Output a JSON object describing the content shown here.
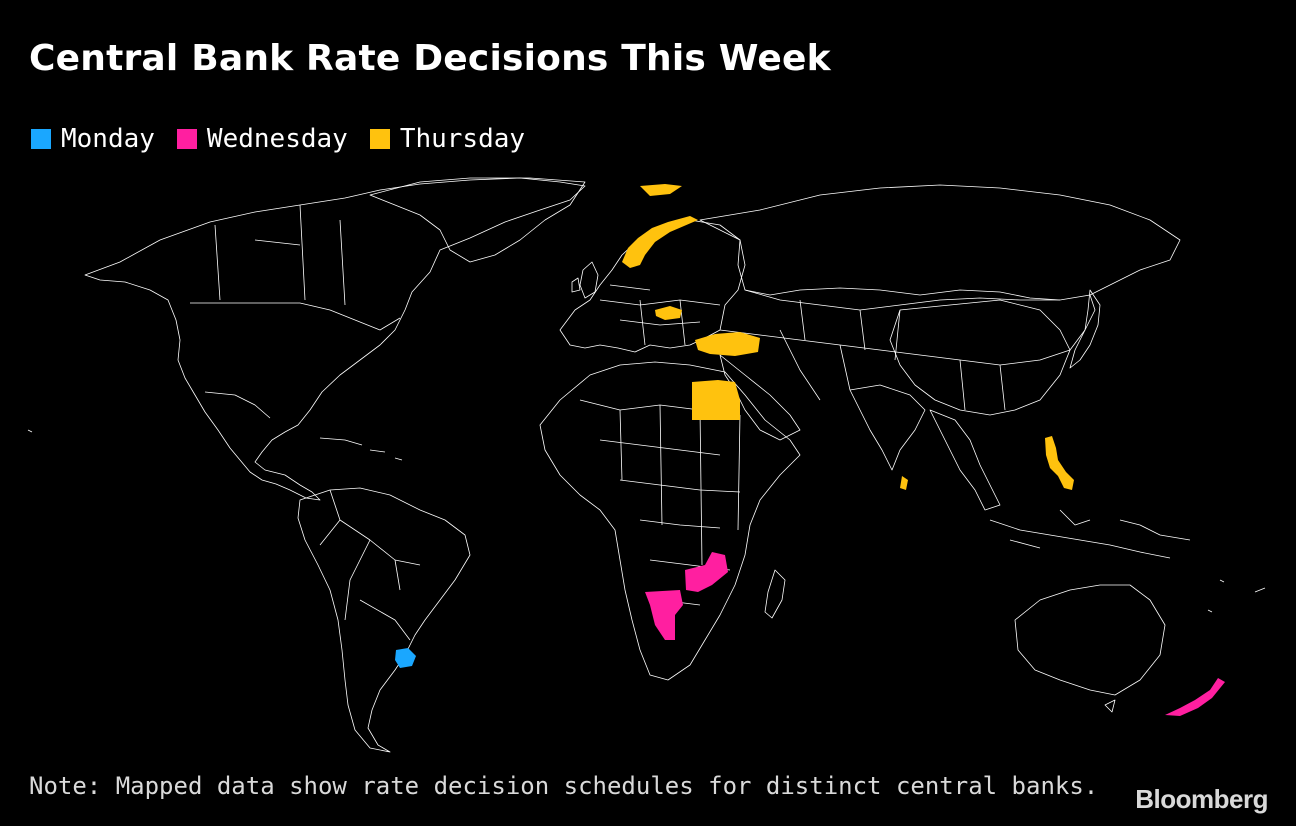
{
  "title": "Central Bank Rate Decisions This Week",
  "legend": [
    {
      "label": "Monday",
      "color": "#1aa7ff"
    },
    {
      "label": "Wednesday",
      "color": "#ff1fa0"
    },
    {
      "label": "Thursday",
      "color": "#ffc20e"
    }
  ],
  "map": {
    "background": "#000000",
    "border_color": "#ffffff",
    "highlighted_regions": [
      {
        "region": "Uruguay",
        "day": "Monday"
      },
      {
        "region": "Namibia",
        "day": "Wednesday"
      },
      {
        "region": "Zambia",
        "day": "Wednesday"
      },
      {
        "region": "New Zealand",
        "day": "Wednesday"
      },
      {
        "region": "Norway",
        "day": "Thursday"
      },
      {
        "region": "Hungary",
        "day": "Thursday"
      },
      {
        "region": "Turkey",
        "day": "Thursday"
      },
      {
        "region": "Egypt",
        "day": "Thursday"
      },
      {
        "region": "Sri Lanka",
        "day": "Thursday"
      },
      {
        "region": "Philippines",
        "day": "Thursday"
      }
    ]
  },
  "note": "Note: Mapped data show rate decision schedules for distinct central banks.",
  "source_logo": "Bloomberg"
}
